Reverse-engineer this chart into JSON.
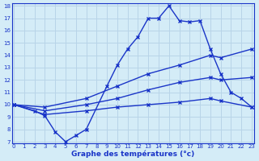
{
  "xlabel": "Graphe des températures (°c)",
  "bg_color": "#d4ecf7",
  "line_color": "#1a35c8",
  "grid_color": "#b8d4e8",
  "ylim": [
    7,
    18
  ],
  "xlim": [
    0,
    23
  ],
  "yticks": [
    7,
    8,
    9,
    10,
    11,
    12,
    13,
    14,
    15,
    16,
    17,
    18
  ],
  "xticks": [
    0,
    1,
    2,
    3,
    4,
    5,
    6,
    7,
    8,
    9,
    10,
    11,
    12,
    13,
    14,
    15,
    16,
    17,
    18,
    19,
    20,
    21,
    22,
    23
  ],
  "line1_x": [
    0,
    2,
    3,
    4,
    5,
    6,
    7,
    9,
    10,
    11,
    12,
    13,
    14,
    15,
    16,
    17,
    18,
    19,
    20,
    21,
    22,
    23
  ],
  "line1_y": [
    10.0,
    9.5,
    9.1,
    7.8,
    7.0,
    7.5,
    8.0,
    11.5,
    13.2,
    14.5,
    15.5,
    17.0,
    17.0,
    18.0,
    16.8,
    16.7,
    16.8,
    14.5,
    12.5,
    11.0,
    10.5,
    9.8
  ],
  "line2_x": [
    0,
    3,
    7,
    10,
    13,
    16,
    19,
    20,
    23
  ],
  "line2_y": [
    10.0,
    9.8,
    10.5,
    11.5,
    12.5,
    13.2,
    14.0,
    13.8,
    14.5
  ],
  "line3_x": [
    0,
    3,
    7,
    10,
    13,
    16,
    19,
    20,
    23
  ],
  "line3_y": [
    10.0,
    9.5,
    10.0,
    10.5,
    11.2,
    11.8,
    12.2,
    12.0,
    12.2
  ],
  "line4_x": [
    0,
    3,
    7,
    10,
    13,
    16,
    19,
    20,
    23
  ],
  "line4_y": [
    10.0,
    9.2,
    9.5,
    9.8,
    10.0,
    10.2,
    10.5,
    10.3,
    9.8
  ]
}
